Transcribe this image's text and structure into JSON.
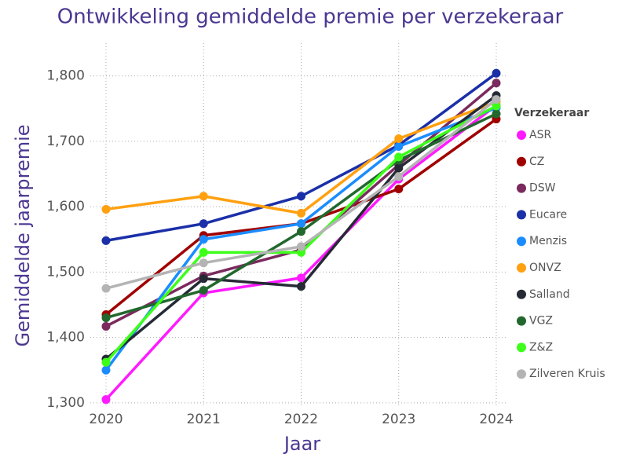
{
  "chart_data": {
    "type": "line",
    "title": "Ontwikkeling gemiddelde premie per verzekeraar",
    "x_label": "Jaar",
    "y_label": "Gemiddelde jaarpremie",
    "legend_title": "Verzekeraar",
    "categories": [
      "2020",
      "2021",
      "2022",
      "2023",
      "2024"
    ],
    "ylim": [
      1295,
      1850
    ],
    "yticks": [
      {
        "value": 1300,
        "label": "1,300"
      },
      {
        "value": 1400,
        "label": "1,400"
      },
      {
        "value": 1500,
        "label": "1,500"
      },
      {
        "value": 1600,
        "label": "1,600"
      },
      {
        "value": 1700,
        "label": "1,700"
      },
      {
        "value": 1800,
        "label": "1,800"
      }
    ],
    "grid": true,
    "series": [
      {
        "name": "ASR",
        "color": "#ff1aff",
        "values": [
          1305,
          1468,
          1491,
          1642,
          1755
        ]
      },
      {
        "name": "CZ",
        "color": "#a00000",
        "values": [
          1435,
          1556,
          1574,
          1627,
          1734
        ]
      },
      {
        "name": "DSW",
        "color": "#7b2a5e",
        "values": [
          1417,
          1494,
          1534,
          1664,
          1789
        ]
      },
      {
        "name": "Eucare",
        "color": "#1a2fa8",
        "values": [
          1548,
          1574,
          1616,
          1694,
          1804
        ]
      },
      {
        "name": "Menzis",
        "color": "#1a8cff",
        "values": [
          1350,
          1550,
          1574,
          1692,
          1751
        ]
      },
      {
        "name": "ONVZ",
        "color": "#ffa010",
        "values": [
          1596,
          1616,
          1590,
          1704,
          1760
        ]
      },
      {
        "name": "Salland",
        "color": "#252a35",
        "values": [
          1367,
          1490,
          1478,
          1659,
          1770
        ]
      },
      {
        "name": "VGZ",
        "color": "#22682e",
        "values": [
          1430,
          1472,
          1562,
          1671,
          1742
        ]
      },
      {
        "name": "Z&Z",
        "color": "#3cff1a",
        "values": [
          1362,
          1530,
          1530,
          1676,
          1754
        ]
      },
      {
        "name": "Zilveren Kruis",
        "color": "#b4b4b4",
        "values": [
          1475,
          1514,
          1539,
          1646,
          1764
        ]
      }
    ]
  }
}
